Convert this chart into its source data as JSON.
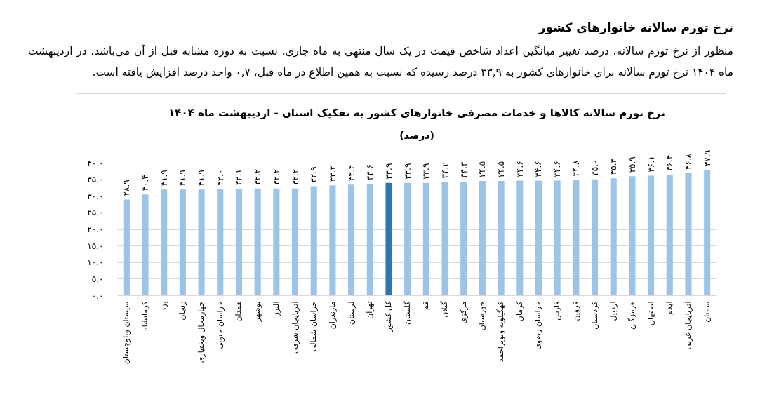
{
  "chart_data": {
    "type": "bar",
    "title": "نرخ تورم سالانه کالاها و خدمات مصرفی خانوارهای کشور به تفکیک استان - اردیبهشت ماه ۱۴۰۴",
    "subtitle": "(درصد)",
    "annotations": [
      "نرخ تورم سالانه خانوارهای کشور",
      "منظور از نرخ تورم سالانه، درصد تغییر میانگین اعداد شاخص قیمت در یک سال منتهی به ماه جاری، نسبت به دوره مشابه قبل از آن می‌باشد. در اردیبهشت ماه ۱۴۰۴ نرخ تورم سالانه برای خانوارهای کشور به ۳۳,۹ درصد رسیده که نسبت به همین اطلاع در ماه قبل، ۰,۷ واحد درصد افزایش یافته است."
    ],
    "categories": [
      "سیستان وبلوچستان",
      "کرمانشاه",
      "یزد",
      "زنجان",
      "چهارمحال وبختیاری",
      "خراسان جنوبی",
      "همدان",
      "بوشهر",
      "البرز",
      "آذربایجان شرقی",
      "خراسان شمالی",
      "مازندران",
      "لرستان",
      "تهران",
      "کل کشور",
      "گلستان",
      "قم",
      "گیلان",
      "مرکزی",
      "خوزستان",
      "کهگیلویه وبویراحمد",
      "کرمان",
      "خراسان رضوی",
      "فارس",
      "قزوین",
      "کردستان",
      "اردبیل",
      "هرمزگان",
      "اصفهان",
      "ایلام",
      "آذربایجان غربی",
      "سمنان"
    ],
    "values": [
      28.9,
      30.4,
      31.9,
      31.9,
      31.9,
      32.0,
      32.1,
      32.2,
      32.2,
      32.2,
      32.9,
      33.2,
      33.4,
      33.6,
      33.9,
      33.9,
      33.9,
      34.2,
      34.3,
      34.5,
      34.5,
      34.6,
      34.6,
      34.6,
      34.8,
      35.0,
      35.3,
      35.9,
      36.1,
      36.4,
      36.8,
      37.9
    ],
    "value_labels": [
      "۲۸.۹",
      "۳۰.۴",
      "۳۱.۹",
      "۳۱.۹",
      "۳۱.۹",
      "۳۲.۰",
      "۳۲.۱",
      "۳۲.۲",
      "۳۲.۲",
      "۳۲.۲",
      "۳۲.۹",
      "۳۳.۲",
      "۳۳.۴",
      "۳۳.۶",
      "۳۳.۹",
      "۳۳.۹",
      "۳۳.۹",
      "۳۴.۲",
      "۳۴.۳",
      "۳۴.۵",
      "۳۴.۵",
      "۳۴.۶",
      "۳۴.۶",
      "۳۴.۶",
      "۳۴.۸",
      "۳۵.۰",
      "۳۵.۳",
      "۳۵.۹",
      "۳۶.۱",
      "۳۶.۴",
      "۳۶.۸",
      "۳۷.۹"
    ],
    "colors": [
      "#9dc3e6",
      "#9dc3e6",
      "#9dc3e6",
      "#9dc3e6",
      "#9dc3e6",
      "#9dc3e6",
      "#9dc3e6",
      "#9dc3e6",
      "#9dc3e6",
      "#9dc3e6",
      "#9dc3e6",
      "#9dc3e6",
      "#9dc3e6",
      "#9dc3e6",
      "#2e75b6",
      "#9dc3e6",
      "#9dc3e6",
      "#9dc3e6",
      "#9dc3e6",
      "#9dc3e6",
      "#9dc3e6",
      "#9dc3e6",
      "#9dc3e6",
      "#9dc3e6",
      "#9dc3e6",
      "#9dc3e6",
      "#9dc3e6",
      "#9dc3e6",
      "#9dc3e6",
      "#9dc3e6",
      "#9dc3e6",
      "#9dc3e6"
    ],
    "ylim": [
      0,
      40
    ],
    "yticks": [
      {
        "value": 0,
        "label": "۰.۰"
      },
      {
        "value": 5,
        "label": "۵.۰"
      },
      {
        "value": 10,
        "label": "۱۰.۰"
      },
      {
        "value": 15,
        "label": "۱۵.۰"
      },
      {
        "value": 20,
        "label": "۲۰.۰"
      },
      {
        "value": 25,
        "label": "۲۵.۰"
      },
      {
        "value": 30,
        "label": "۳۰.۰"
      },
      {
        "value": 35,
        "label": "۳۵.۰"
      },
      {
        "value": 40,
        "label": "۴۰.۰"
      }
    ],
    "grid": "y"
  }
}
